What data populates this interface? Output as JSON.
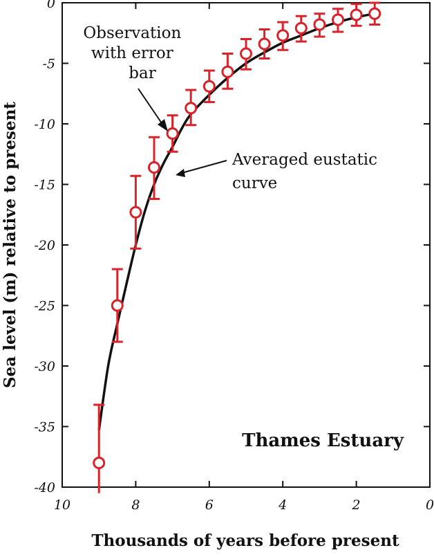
{
  "chart_data": {
    "type": "scatter",
    "title": "",
    "xlabel": "Thousands of years before present",
    "ylabel": "Sea level (m) relative to present",
    "xlim": [
      10,
      0
    ],
    "ylim": [
      -40,
      0
    ],
    "x_reversed": true,
    "x_ticks": [
      10,
      8,
      6,
      4,
      2,
      0
    ],
    "x_tick_labels": [
      "10",
      "8",
      "6",
      "4",
      "2",
      "0"
    ],
    "y_ticks": [
      0,
      -5,
      -10,
      -15,
      -20,
      -25,
      -30,
      -35,
      -40
    ],
    "y_tick_labels": [
      "0",
      "-5",
      "-10",
      "-15",
      "-20",
      "-25",
      "-30",
      "-35",
      "-40"
    ],
    "grid": false,
    "site_label": "Thames Estuary",
    "annotations": [
      {
        "id": "obs",
        "lines": [
          "Observation",
          "with error",
          "bar"
        ]
      },
      {
        "id": "curve",
        "lines": [
          "Averaged eustatic",
          "curve"
        ]
      }
    ],
    "series": [
      {
        "kind": "observations",
        "color": "#d8232a",
        "points": [
          {
            "x": 9.0,
            "y": -38.0,
            "err_low": -40.5,
            "err_high": -33.2
          },
          {
            "x": 8.5,
            "y": -25.0,
            "err_low": -28.0,
            "err_high": -22.0
          },
          {
            "x": 8.0,
            "y": -17.3,
            "err_low": -20.3,
            "err_high": -14.3
          },
          {
            "x": 7.5,
            "y": -13.6,
            "err_low": -16.2,
            "err_high": -11.1
          },
          {
            "x": 7.0,
            "y": -10.8,
            "err_low": -12.3,
            "err_high": -9.3
          },
          {
            "x": 6.5,
            "y": -8.7,
            "err_low": -10.1,
            "err_high": -7.2
          },
          {
            "x": 6.0,
            "y": -6.9,
            "err_low": -8.2,
            "err_high": -5.6
          },
          {
            "x": 5.5,
            "y": -5.7,
            "err_low": -7.1,
            "err_high": -4.2
          },
          {
            "x": 5.0,
            "y": -4.2,
            "err_low": -5.5,
            "err_high": -3.0
          },
          {
            "x": 4.5,
            "y": -3.4,
            "err_low": -4.6,
            "err_high": -2.2
          },
          {
            "x": 4.0,
            "y": -2.7,
            "err_low": -3.9,
            "err_high": -1.6
          },
          {
            "x": 3.5,
            "y": -2.1,
            "err_low": -3.2,
            "err_high": -1.1
          },
          {
            "x": 3.0,
            "y": -1.8,
            "err_low": -2.8,
            "err_high": -0.9
          },
          {
            "x": 2.5,
            "y": -1.4,
            "err_low": -2.4,
            "err_high": -0.5
          },
          {
            "x": 2.0,
            "y": -1.0,
            "err_low": -1.9,
            "err_high": -0.1
          },
          {
            "x": 1.5,
            "y": -0.9,
            "err_low": -1.8,
            "err_high": 0.0
          }
        ]
      },
      {
        "kind": "curve",
        "color": "#111111",
        "points": [
          {
            "x": 9.0,
            "y": -35.3
          },
          {
            "x": 8.75,
            "y": -30.0
          },
          {
            "x": 8.5,
            "y": -26.5
          },
          {
            "x": 8.25,
            "y": -23.2
          },
          {
            "x": 8.0,
            "y": -20.0
          },
          {
            "x": 7.75,
            "y": -17.2
          },
          {
            "x": 7.5,
            "y": -15.0
          },
          {
            "x": 7.25,
            "y": -13.3
          },
          {
            "x": 7.0,
            "y": -11.9
          },
          {
            "x": 6.75,
            "y": -10.4
          },
          {
            "x": 6.5,
            "y": -9.2
          },
          {
            "x": 6.0,
            "y": -7.6
          },
          {
            "x": 5.5,
            "y": -6.2
          },
          {
            "x": 5.0,
            "y": -5.0
          },
          {
            "x": 4.5,
            "y": -4.1
          },
          {
            "x": 4.0,
            "y": -3.3
          },
          {
            "x": 3.5,
            "y": -2.7
          },
          {
            "x": 3.0,
            "y": -2.1
          },
          {
            "x": 2.5,
            "y": -1.6
          },
          {
            "x": 2.0,
            "y": -1.2
          },
          {
            "x": 1.5,
            "y": -0.9
          }
        ]
      }
    ]
  }
}
